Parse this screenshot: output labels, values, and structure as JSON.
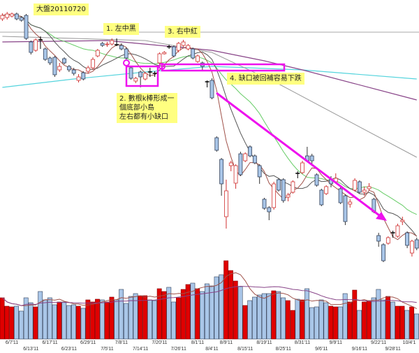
{
  "chart_data": {
    "type": "candlestick",
    "title": "大盤20110720",
    "price_scale": "unlabeled (relative units)",
    "ylim": [
      40,
      400
    ],
    "colors": {
      "up": "#e00000",
      "down": "#a9c6e8",
      "doji": "#000000",
      "ma5": "#a0524a",
      "ma10": "#555555",
      "ma20": "#66cc66",
      "ma_long1": "#884488",
      "ma_long2": "#999999",
      "ma_long3": "#55d4dd",
      "annotation": "#ee11ee",
      "note_bg": "#ffff80"
    },
    "ohlc": [
      [
        373,
        381,
        370,
        378
      ],
      [
        375,
        383,
        372,
        380
      ],
      [
        377,
        382,
        375,
        380
      ],
      [
        380,
        382,
        371,
        373
      ],
      [
        375,
        377,
        369,
        371
      ],
      [
        378,
        380,
        343,
        345
      ],
      [
        340,
        342,
        322,
        325
      ],
      [
        328,
        345,
        326,
        343
      ],
      [
        343,
        348,
        330,
        343
      ],
      [
        330,
        332,
        313,
        315
      ],
      [
        317,
        319,
        307,
        310
      ],
      [
        318,
        320,
        290,
        293
      ],
      [
        300,
        310,
        297,
        305
      ],
      [
        316,
        318,
        308,
        310
      ],
      [
        305,
        307,
        297,
        300
      ],
      [
        300,
        303,
        292,
        295
      ],
      [
        285,
        294,
        282,
        290
      ],
      [
        296,
        298,
        285,
        287
      ],
      [
        298,
        306,
        295,
        303
      ],
      [
        303,
        318,
        300,
        315
      ],
      [
        320,
        330,
        318,
        328
      ],
      [
        338,
        340,
        333,
        335
      ],
      [
        336,
        340,
        333,
        337
      ],
      [
        337,
        345,
        335,
        342
      ],
      [
        336,
        345,
        334,
        336
      ],
      [
        335,
        338,
        328,
        330
      ],
      [
        330,
        332,
        315,
        317
      ],
      [
        303,
        305,
        286,
        288
      ],
      [
        284,
        290,
        281,
        288
      ],
      [
        297,
        299,
        275,
        290
      ],
      [
        287,
        297,
        285,
        295
      ],
      [
        297,
        303,
        290,
        297
      ],
      [
        295,
        298,
        290,
        295
      ],
      [
        310,
        325,
        308,
        323
      ],
      [
        323,
        327,
        322,
        325
      ],
      [
        333,
        336,
        330,
        333
      ],
      [
        333,
        335,
        318,
        320
      ],
      [
        328,
        340,
        325,
        338
      ],
      [
        335,
        343,
        333,
        340
      ],
      [
        330,
        337,
        328,
        335
      ],
      [
        330,
        332,
        315,
        317
      ],
      [
        312,
        322,
        310,
        320
      ],
      [
        310,
        312,
        300,
        305
      ],
      [
        283,
        285,
        275,
        283
      ],
      [
        285,
        288,
        258,
        260
      ],
      [
        203,
        205,
        183,
        185
      ],
      [
        172,
        174,
        120,
        137
      ],
      [
        90,
        143,
        73,
        127
      ],
      [
        163,
        170,
        155,
        167
      ],
      [
        138,
        165,
        130,
        163
      ],
      [
        180,
        183,
        148,
        150
      ],
      [
        170,
        182,
        168,
        180
      ],
      [
        190,
        192,
        175,
        177
      ],
      [
        177,
        179,
        165,
        167
      ],
      [
        163,
        165,
        137,
        147
      ],
      [
        115,
        117,
        100,
        102
      ],
      [
        103,
        105,
        85,
        97
      ],
      [
        103,
        140,
        100,
        137
      ],
      [
        143,
        145,
        126,
        128
      ],
      [
        143,
        145,
        110,
        113
      ],
      [
        118,
        124,
        112,
        121
      ],
      [
        125,
        142,
        123,
        140
      ],
      [
        152,
        155,
        145,
        152
      ],
      [
        153,
        170,
        151,
        167
      ],
      [
        177,
        190,
        168,
        170
      ],
      [
        177,
        180,
        165,
        170
      ],
      [
        150,
        152,
        133,
        135
      ],
      [
        128,
        130,
        105,
        107
      ],
      [
        123,
        135,
        121,
        133
      ],
      [
        143,
        148,
        132,
        137
      ],
      [
        140,
        152,
        138,
        145
      ],
      [
        130,
        132,
        108,
        110
      ],
      [
        120,
        122,
        78,
        83
      ],
      [
        108,
        115,
        103,
        111
      ],
      [
        128,
        145,
        126,
        142
      ],
      [
        140,
        142,
        123,
        125
      ],
      [
        125,
        133,
        120,
        128
      ],
      [
        130,
        138,
        128,
        133
      ],
      [
        115,
        117,
        95,
        97
      ],
      [
        63,
        67,
        47,
        55
      ],
      [
        50,
        52,
        25,
        27
      ],
      [
        52,
        62,
        50,
        60
      ],
      [
        67,
        70,
        60,
        67
      ],
      [
        62,
        80,
        60,
        77
      ],
      [
        83,
        90,
        78,
        85
      ],
      [
        67,
        69,
        45,
        49
      ],
      [
        38,
        57,
        33,
        55
      ],
      [
        57,
        60,
        42,
        45
      ]
    ],
    "long_ma_anchors": {
      "ma_long1": [
        [
          0,
          340
        ],
        [
          22,
          342
        ],
        [
          44,
          328
        ],
        [
          55,
          313
        ],
        [
          63,
          300
        ],
        [
          87,
          257
        ]
      ],
      "ma_long2": [
        [
          0,
          348
        ],
        [
          30,
          342
        ],
        [
          44,
          325
        ],
        [
          58,
          280
        ],
        [
          87,
          175
        ]
      ],
      "ma_long3": [
        [
          0,
          275
        ],
        [
          15,
          287
        ],
        [
          30,
          297
        ],
        [
          44,
          305
        ],
        [
          63,
          300
        ],
        [
          87,
          287
        ]
      ]
    },
    "reference_line": 354,
    "volume": {
      "ylim": [
        0,
        125
      ],
      "values": [
        59,
        47,
        46,
        47,
        40,
        59,
        52,
        46,
        68,
        56,
        59,
        49,
        53,
        53,
        48,
        49,
        47,
        44,
        56,
        53,
        57,
        56,
        53,
        60,
        56,
        71,
        51,
        61,
        65,
        62,
        62,
        56,
        55,
        72,
        68,
        74,
        53,
        59,
        71,
        78,
        80,
        72,
        68,
        79,
        76,
        89,
        92,
        112,
        98,
        83,
        75,
        48,
        55,
        60,
        63,
        65,
        65,
        69,
        68,
        59,
        55,
        41,
        57,
        56,
        72,
        45,
        46,
        56,
        52,
        47,
        46,
        46,
        65,
        53,
        70,
        41,
        53,
        55,
        59,
        71,
        56,
        61,
        53,
        47,
        47,
        41,
        46,
        36
      ],
      "colors": [
        "R",
        "R",
        "R",
        "B",
        "B",
        "B",
        "B",
        "R",
        "B",
        "B",
        "B",
        "B",
        "R",
        "B",
        "B",
        "B",
        "R",
        "B",
        "R",
        "R",
        "R",
        "B",
        "R",
        "R",
        "B",
        "B",
        "B",
        "B",
        "B",
        "R",
        "R",
        "B",
        "B",
        "R",
        "R",
        "B",
        "B",
        "R",
        "R",
        "R",
        "B",
        "R",
        "B",
        "B",
        "B",
        "B",
        "B",
        "R",
        "R",
        "R",
        "B",
        "R",
        "B",
        "B",
        "B",
        "B",
        "B",
        "R",
        "B",
        "B",
        "R",
        "R",
        "B",
        "R",
        "B",
        "B",
        "B",
        "B",
        "B",
        "R",
        "R",
        "B",
        "B",
        "R",
        "R",
        "B",
        "R",
        "R",
        "B",
        "B",
        "B",
        "R",
        "B",
        "R",
        "R",
        "B",
        "R",
        "B"
      ]
    },
    "x_ticks": [
      {
        "i": 2,
        "label": "6/7'11"
      },
      {
        "i": 6,
        "label": "6/13'11"
      },
      {
        "i": 10,
        "label": "6/17'11"
      },
      {
        "i": 14,
        "label": "6/23'11"
      },
      {
        "i": 18,
        "label": "6/29'11"
      },
      {
        "i": 22,
        "label": "7/5'11"
      },
      {
        "i": 25,
        "label": "7/8'11"
      },
      {
        "i": 29,
        "label": "7/14'11"
      },
      {
        "i": 33,
        "label": "7/20'11"
      },
      {
        "i": 37,
        "label": "7/26'11"
      },
      {
        "i": 41,
        "label": "8/1'11"
      },
      {
        "i": 44,
        "label": "8/4'11"
      },
      {
        "i": 47,
        "label": "8/9'11"
      },
      {
        "i": 51,
        "label": "8/15'11"
      },
      {
        "i": 55,
        "label": "8/19'11"
      },
      {
        "i": 59,
        "label": "8/25'11"
      },
      {
        "i": 63,
        "label": "8/31'11"
      },
      {
        "i": 67,
        "label": "9/6'11"
      },
      {
        "i": 70,
        "label": "9/9'11"
      },
      {
        "i": 75,
        "label": "9/16'11"
      },
      {
        "i": 79,
        "label": "9/22'11"
      },
      {
        "i": 82,
        "label": "9/28'11"
      },
      {
        "i": 86,
        "label": "10/4'1"
      }
    ],
    "annotations": {
      "title": "大盤20110720",
      "note1": "1. 左中黑",
      "note2_line1": "2. 數根k棒形成一",
      "note2_line2": "個底部小島",
      "note2_line3": "左右都有小缺口",
      "note3": "3. 右中紅",
      "note4": "4. 缺口被回補容易下跌"
    }
  }
}
